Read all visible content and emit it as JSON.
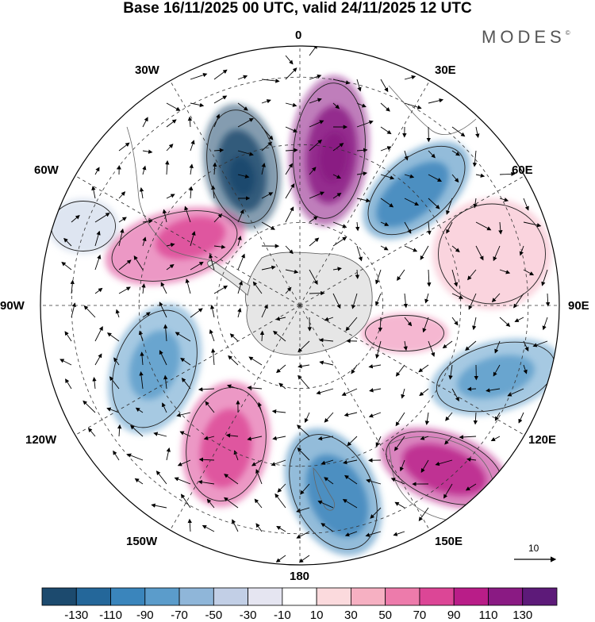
{
  "title": "Base 16/11/2025 00 UTC, valid 24/11/2025 12 UTC",
  "brand": "MODES",
  "brand_mark": "©",
  "longitude_labels": {
    "top": "0",
    "lon_30e": "30E",
    "lon_60e": "60E",
    "lon_90e": "90E",
    "lon_120e": "120E",
    "lon_150e": "150E",
    "bottom": "180",
    "lon_150w": "150W",
    "lon_120w": "120W",
    "lon_90w": "90W",
    "lon_60w": "60W",
    "lon_30w": "30W"
  },
  "vector_scale_label": "10",
  "colorbar": {
    "labels": [
      "-130",
      "-110",
      "-90",
      "-70",
      "-50",
      "-30",
      "-10",
      "10",
      "30",
      "50",
      "70",
      "90",
      "110",
      "130"
    ],
    "colors": [
      "#1c4a6e",
      "#24679a",
      "#3a85bc",
      "#5b9ccb",
      "#8fb6d9",
      "#c2cfe6",
      "#e5e5f1",
      "#ffffff",
      "#fbdadd",
      "#f6b0c2",
      "#ed7bab",
      "#dc4696",
      "#b91d88",
      "#8a1a83",
      "#5d1a79"
    ]
  },
  "anomaly_centers": [
    {
      "name": "low-north",
      "color": "#1c4a6e"
    },
    {
      "name": "high-north",
      "color": "#8a1a83"
    },
    {
      "name": "low-ne",
      "color": "#3a85bc"
    },
    {
      "name": "high-east",
      "color": "#f6b0c2"
    },
    {
      "name": "low-east",
      "color": "#5b9ccb"
    },
    {
      "name": "high-se",
      "color": "#b91d88"
    },
    {
      "name": "low-south",
      "color": "#3a85bc"
    },
    {
      "name": "high-sw",
      "color": "#dc4696"
    },
    {
      "name": "low-west",
      "color": "#5b9ccb"
    },
    {
      "name": "high-nw",
      "color": "#dc4696"
    },
    {
      "name": "high-ring-east",
      "color": "#ed7bab"
    },
    {
      "name": "low-far-west",
      "color": "#c2cfe6"
    }
  ]
}
